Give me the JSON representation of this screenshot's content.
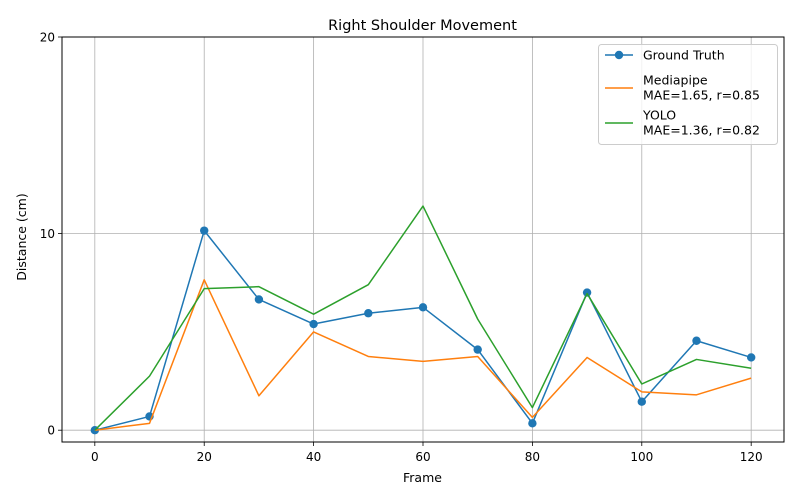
{
  "chart_data": {
    "type": "line",
    "title": "Right Shoulder Movement",
    "xlabel": "Frame",
    "ylabel": "Distance (cm)",
    "xlim": [
      -6,
      126
    ],
    "ylim": [
      -0.6,
      20
    ],
    "xticks": [
      0,
      20,
      40,
      60,
      80,
      100,
      120
    ],
    "yticks": [
      0,
      10,
      20
    ],
    "grid": true,
    "legend_position": "top-right",
    "x": [
      0,
      10,
      20,
      30,
      40,
      50,
      60,
      70,
      80,
      90,
      100,
      110,
      120
    ],
    "series": [
      {
        "name": "Ground Truth",
        "color": "#1f77b4",
        "marker": "circle",
        "values": [
          0,
          0.7,
          10.15,
          6.65,
          5.4,
          5.95,
          6.25,
          4.1,
          0.35,
          7.0,
          1.45,
          4.55,
          3.7
        ]
      },
      {
        "name": "Mediapipe",
        "stats": "MAE=1.65, r=0.85",
        "color": "#ff7f0e",
        "marker": "none",
        "values": [
          0,
          0.35,
          7.65,
          1.75,
          5.0,
          3.75,
          3.5,
          3.75,
          0.65,
          3.7,
          1.95,
          1.8,
          2.65
        ]
      },
      {
        "name": "YOLO",
        "stats": "MAE=1.36, r=0.82",
        "color": "#2ca02c",
        "marker": "none",
        "values": [
          0,
          2.75,
          7.2,
          7.3,
          5.9,
          7.4,
          11.4,
          5.65,
          1.15,
          6.95,
          2.35,
          3.6,
          3.15
        ]
      }
    ]
  }
}
